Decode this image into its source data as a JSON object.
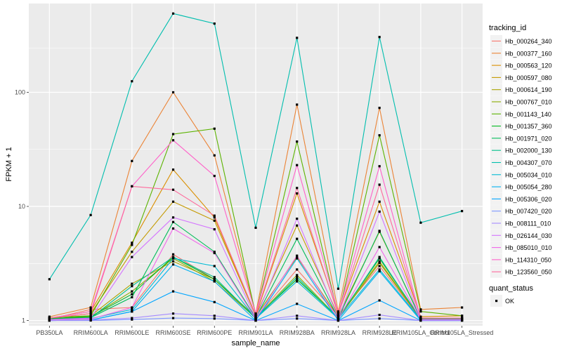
{
  "chart_data": {
    "type": "line",
    "title": "",
    "xlabel": "sample_name",
    "ylabel": "FPKM + 1",
    "y_scale": "log10",
    "ylim": [
      0.9,
      600
    ],
    "yticks": [
      1,
      10,
      100
    ],
    "ytick_labels": [
      "1",
      "10",
      "100"
    ],
    "grid": true,
    "panel_background": "#ebebeb",
    "categories": [
      "PB350LA",
      "RRIM600LA",
      "RRIM600LE",
      "RRIM600SE",
      "RRIM600PE",
      "RRIM901LA",
      "RRIM928BA",
      "RRIM928LA",
      "RRIM928LE",
      "RRIM105LA_Control",
      "RRIM105LA_Stressed"
    ],
    "legend": {
      "title": "tracking_id",
      "position": "right"
    },
    "point_legend": {
      "title": "quant_status",
      "entries": [
        "OK"
      ]
    },
    "series": [
      {
        "name": "Hb_000264_340",
        "color": "#F8766D",
        "values": [
          1.03,
          1.25,
          1.3,
          3.8,
          2.3,
          1.05,
          2.8,
          1.1,
          3.0,
          1.03,
          1.03
        ]
      },
      {
        "name": "Hb_000377_160",
        "color": "#EB8335",
        "values": [
          1.08,
          1.3,
          25,
          100,
          28,
          1.15,
          78,
          1.2,
          73,
          1.25,
          1.3
        ]
      },
      {
        "name": "Hb_000563_120",
        "color": "#DA8F00",
        "values": [
          1.05,
          1.2,
          4.8,
          21,
          8,
          1.1,
          13,
          1.15,
          11,
          1.08,
          1.1
        ]
      },
      {
        "name": "Hb_000597_080",
        "color": "#C49A00",
        "values": [
          1.04,
          1.15,
          4.0,
          11,
          7.5,
          1.1,
          6.8,
          1.1,
          6.0,
          1.05,
          1.05
        ]
      },
      {
        "name": "Hb_000614_190",
        "color": "#AAA300",
        "values": [
          1.03,
          1.1,
          2.1,
          3.3,
          2.3,
          1.08,
          3.6,
          1.08,
          3.3,
          1.04,
          1.04
        ]
      },
      {
        "name": "Hb_000767_010",
        "color": "#8AAB00",
        "values": [
          1.02,
          1.08,
          1.8,
          3.5,
          2.2,
          1.05,
          2.5,
          1.05,
          3.2,
          1.03,
          1.03
        ]
      },
      {
        "name": "Hb_001143_140",
        "color": "#5BB300",
        "values": [
          1.06,
          1.1,
          4.6,
          43,
          48,
          1.12,
          37,
          1.1,
          42,
          1.2,
          1.1
        ]
      },
      {
        "name": "Hb_001357_360",
        "color": "#00B81F",
        "values": [
          1.04,
          1.08,
          1.7,
          3.6,
          2.3,
          1.06,
          2.3,
          1.06,
          3.5,
          1.04,
          1.04
        ]
      },
      {
        "name": "Hb_001971_020",
        "color": "#00BC59",
        "values": [
          1.03,
          1.06,
          1.6,
          7.3,
          4.0,
          1.05,
          5.2,
          1.05,
          6.1,
          1.03,
          1.03
        ]
      },
      {
        "name": "Hb_002000_130",
        "color": "#00C08B",
        "values": [
          1.02,
          1.05,
          2.0,
          3.6,
          2.4,
          1.04,
          2.4,
          1.04,
          3.6,
          1.02,
          1.02
        ]
      },
      {
        "name": "Hb_004307_070",
        "color": "#00BEAE",
        "values": [
          2.3,
          8.4,
          125,
          490,
          400,
          6.5,
          300,
          1.9,
          305,
          7.2,
          9.1
        ]
      },
      {
        "name": "Hb_005034_010",
        "color": "#00BAD3",
        "values": [
          1.02,
          1.04,
          1.25,
          3.5,
          3.0,
          1.04,
          2.2,
          1.04,
          2.8,
          1.02,
          1.02
        ]
      },
      {
        "name": "Hb_005054_280",
        "color": "#00B1F0",
        "values": [
          1.0,
          1.01,
          1.2,
          3.1,
          2.2,
          1.0,
          3.5,
          1.0,
          2.7,
          1.0,
          1.0
        ]
      },
      {
        "name": "Hb_005306_020",
        "color": "#00A5FF",
        "values": [
          1.0,
          1.01,
          1.2,
          1.8,
          1.45,
          1.0,
          1.4,
          1.0,
          1.5,
          1.0,
          1.0
        ]
      },
      {
        "name": "Hb_007420_020",
        "color": "#7C96FF",
        "values": [
          1.0,
          1.0,
          1.02,
          1.05,
          1.04,
          1.0,
          1.04,
          1.0,
          1.04,
          1.0,
          1.0
        ]
      },
      {
        "name": "Hb_008111_010",
        "color": "#A58AFF",
        "values": [
          1.0,
          1.01,
          1.05,
          1.15,
          1.1,
          1.0,
          1.1,
          1.0,
          1.12,
          1.0,
          1.0
        ]
      },
      {
        "name": "Hb_026144_030",
        "color": "#D474FF",
        "values": [
          1.02,
          1.05,
          3.6,
          8.0,
          6.3,
          1.05,
          7.8,
          1.05,
          9.0,
          1.02,
          1.02
        ]
      },
      {
        "name": "Hb_085010_010",
        "color": "#F066EA",
        "values": [
          1.02,
          1.03,
          1.3,
          6.4,
          3.9,
          1.03,
          3.7,
          1.03,
          4.4,
          1.02,
          1.02
        ]
      },
      {
        "name": "Hb_114310_050",
        "color": "#FF61C9",
        "values": [
          1.05,
          1.2,
          15,
          38,
          18.5,
          1.15,
          23,
          1.15,
          22.5,
          1.05,
          1.05
        ]
      },
      {
        "name": "Hb_123560_050",
        "color": "#FF699C",
        "values": [
          1.05,
          1.15,
          15,
          14,
          8.3,
          1.12,
          14.5,
          1.12,
          15.5,
          1.05,
          1.05
        ]
      }
    ]
  }
}
